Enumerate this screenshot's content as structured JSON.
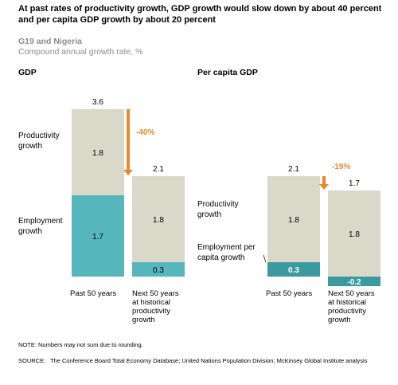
{
  "title": "At past rates of productivity growth, GDP growth would slow down by about 40 percent and per capita GDP growth by about 20 percent",
  "subtitle": "G19 and Nigeria",
  "unit": "Compound annual growth rate, %",
  "note": "NOTE: Numbers may not sum due to rounding.",
  "source_label": "SOURCE:",
  "source_text": "The Conference Board Total Economy Database; United Nations Population Division; McKinsey Global Institute analysis",
  "colors": {
    "productivity": "#d9d8c9",
    "employment": "#55b7bc",
    "employment_dark": "#3a9aa0",
    "arrow": "#e8872e",
    "change_text": "#e8872e"
  },
  "chart_data": [
    {
      "type": "bar",
      "title": "GDP",
      "categories": [
        "Past 50 years",
        "Next 50 years at historical productivity growth"
      ],
      "series": [
        {
          "name": "Employment growth",
          "values": [
            1.7,
            0.3
          ]
        },
        {
          "name": "Productivity growth",
          "values": [
            1.8,
            1.8
          ]
        }
      ],
      "totals": [
        3.6,
        2.1
      ],
      "change_label": "-40%"
    },
    {
      "type": "bar",
      "title": "Per capita GDP",
      "categories": [
        "Past 50 years",
        "Next 50 years at historical productivity growth"
      ],
      "series": [
        {
          "name": "Employment per capita growth",
          "values": [
            0.3,
            -0.2
          ]
        },
        {
          "name": "Productivity growth",
          "values": [
            1.8,
            1.8
          ]
        }
      ],
      "totals": [
        2.1,
        1.7
      ],
      "change_label": "-19%"
    }
  ]
}
